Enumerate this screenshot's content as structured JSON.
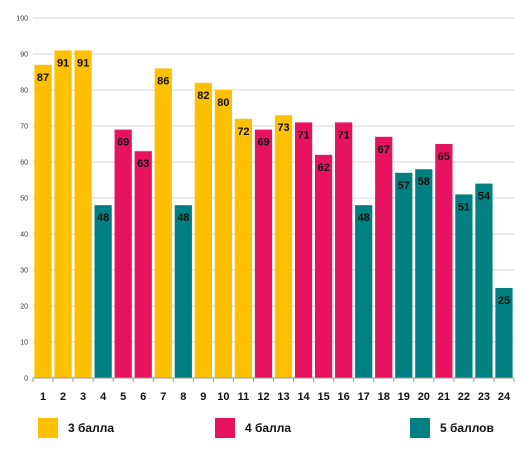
{
  "chart_data": {
    "type": "bar",
    "categories": [
      "1",
      "2",
      "3",
      "4",
      "5",
      "6",
      "7",
      "8",
      "9",
      "10",
      "11",
      "12",
      "13",
      "14",
      "15",
      "16",
      "17",
      "18",
      "19",
      "20",
      "21",
      "22",
      "23",
      "24"
    ],
    "values": [
      87,
      91,
      91,
      48,
      69,
      63,
      86,
      48,
      82,
      80,
      72,
      69,
      73,
      71,
      62,
      71,
      48,
      67,
      57,
      58,
      65,
      51,
      54,
      25
    ],
    "groups": [
      "3",
      "3",
      "3",
      "5",
      "4",
      "4",
      "3",
      "5",
      "3",
      "3",
      "3",
      "4",
      "3",
      "4",
      "4",
      "4",
      "5",
      "4",
      "5",
      "5",
      "4",
      "5",
      "5",
      "5"
    ],
    "ylim": [
      0,
      100
    ],
    "yticks": [
      0,
      10,
      20,
      30,
      40,
      50,
      60,
      70,
      80,
      90,
      100
    ],
    "grid": true,
    "legend_position": "bottom",
    "legend": [
      {
        "key": "3",
        "label": "3 балла",
        "color": "#ffc000"
      },
      {
        "key": "4",
        "label": "4 балла",
        "color": "#e8135f"
      },
      {
        "key": "5",
        "label": "5 баллов",
        "color": "#008080"
      }
    ],
    "title": "",
    "xlabel": "",
    "ylabel": ""
  }
}
